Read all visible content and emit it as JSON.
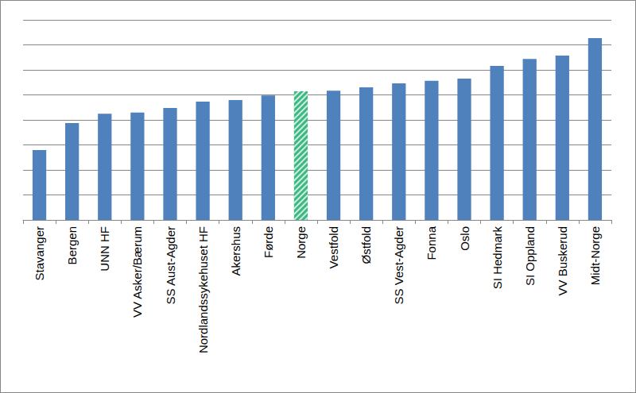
{
  "chart_data": {
    "type": "bar",
    "categories": [
      "Stavanger",
      "Bergen",
      "UNN HF",
      "VV Asker/Bærum",
      "SS Aust-Agder",
      "Nordlandssykehuset HF",
      "Akershus",
      "Førde",
      "Norge",
      "Vestfold",
      "Østfold",
      "SS Vest-Agder",
      "Fonna",
      "Oslo",
      "SI Hedmark",
      "SI Oppland",
      "VV Buskerud",
      "Midt-Norge"
    ],
    "values": [
      2.79,
      3.87,
      4.25,
      4.29,
      4.48,
      4.73,
      4.79,
      4.98,
      5.14,
      5.17,
      5.3,
      5.46,
      5.56,
      5.65,
      6.16,
      6.44,
      6.57,
      7.27
    ],
    "colors": [
      "#4f81bd",
      "#4f81bd",
      "#4f81bd",
      "#4f81bd",
      "#4f81bd",
      "#4f81bd",
      "#4f81bd",
      "#4f81bd",
      "#3cb883",
      "#4f81bd",
      "#4f81bd",
      "#4f81bd",
      "#4f81bd",
      "#4f81bd",
      "#4f81bd",
      "#4f81bd",
      "#4f81bd",
      "#4f81bd"
    ],
    "ylim": [
      0,
      8
    ],
    "yticks": [
      0,
      1,
      2,
      3,
      4,
      5,
      6,
      7,
      8
    ],
    "grid": true,
    "tick_labels": "x"
  }
}
